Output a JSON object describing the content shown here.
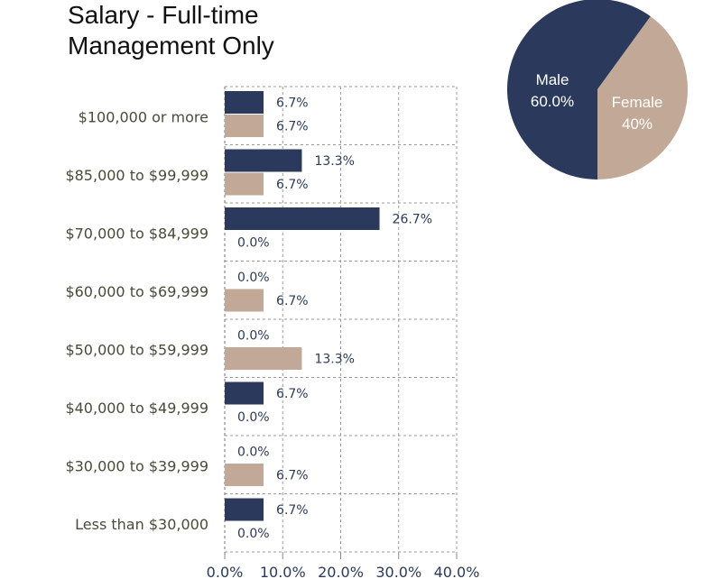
{
  "chart_data": [
    {
      "type": "bar",
      "orientation": "horizontal",
      "title_lines": [
        "Salary - Full-time",
        "Management Only"
      ],
      "categories": [
        "$100,000 or more",
        "$85,000 to $99,999",
        "$70,000 to $84,999",
        "$60,000 to $69,999",
        "$50,000 to $59,999",
        "$40,000 to $49,999",
        "$30,000 to $39,999",
        "Less than $30,000"
      ],
      "series": [
        {
          "color": "#2b3a5c",
          "values": [
            6.7,
            13.3,
            26.7,
            0.0,
            0.0,
            6.7,
            0.0,
            6.7
          ]
        },
        {
          "color": "#c2a897",
          "values": [
            6.7,
            6.7,
            0.0,
            6.7,
            13.3,
            0.0,
            6.7,
            0.0
          ]
        }
      ],
      "value_labels": [
        [
          "6.7%",
          "13.3%",
          "26.7%",
          "0.0%",
          "0.0%",
          "6.7%",
          "0.0%",
          "6.7%"
        ],
        [
          "6.7%",
          "6.7%",
          "0.0%",
          "6.7%",
          "13.3%",
          "0.0%",
          "6.7%",
          "0.0%"
        ]
      ],
      "xlim": [
        0,
        40
      ],
      "x_ticks": [
        0,
        10,
        20,
        30,
        40
      ],
      "x_tick_labels": [
        "0.0%",
        "10.0%",
        "20.0%",
        "30.0%",
        "40.0%"
      ],
      "grid": "dashed"
    },
    {
      "type": "pie",
      "slices": [
        {
          "name": "Male",
          "value": 60.0,
          "label": "60.0%",
          "color": "#2b3a5c"
        },
        {
          "name": "Female",
          "value": 40.0,
          "label": "40%",
          "color": "#c2a897"
        }
      ]
    }
  ]
}
